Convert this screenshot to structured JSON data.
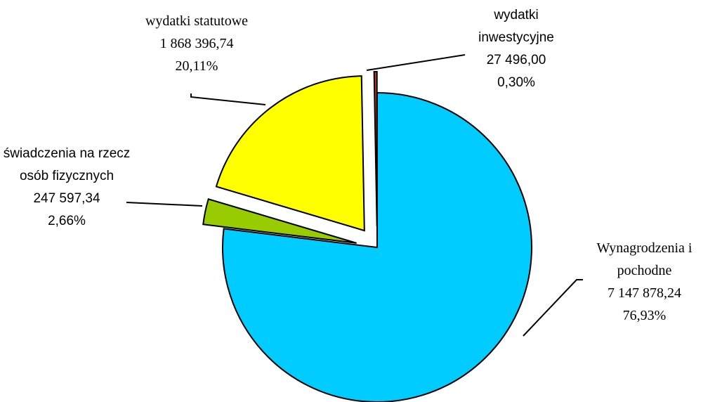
{
  "chart_data": {
    "type": "pie",
    "categories": [
      "Wynagrodzenia i pochodne",
      "świadczenia na rzecz osób fizycznych",
      "wydatki statutowe",
      "wydatki inwestycyjne"
    ],
    "values": [
      7147878.24,
      247597.34,
      1868396.74,
      27496.0
    ],
    "value_labels": [
      "7 147 878,24",
      "247 597,34",
      "1 868 396,74",
      "27 496,00"
    ],
    "percents": [
      76.93,
      2.66,
      20.11,
      0.3
    ],
    "percent_labels": [
      "76,93%",
      "2,66%",
      "20,11%",
      "0,30%"
    ],
    "colors": [
      "#00ccff",
      "#99cc00",
      "#ffff00",
      "#c0392b"
    ]
  }
}
